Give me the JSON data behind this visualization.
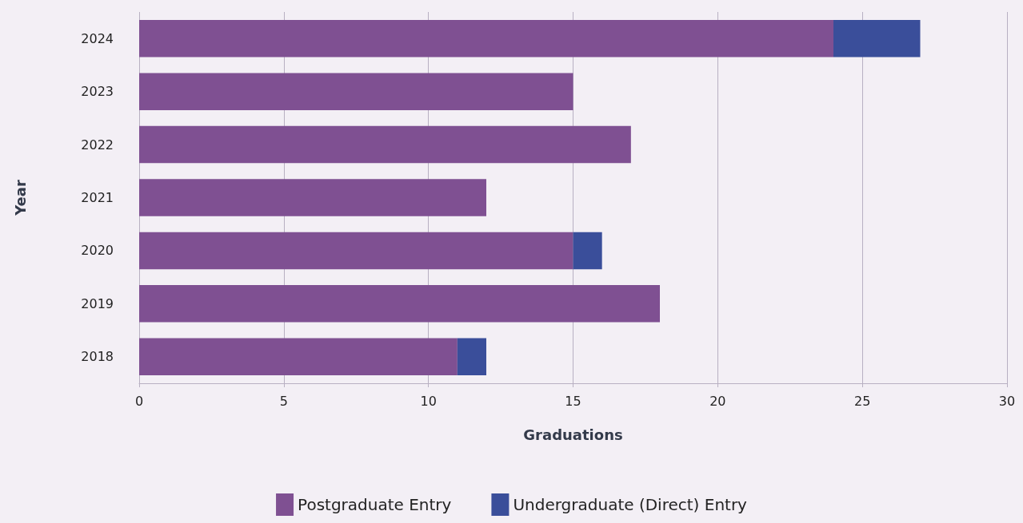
{
  "chart_data": {
    "type": "bar",
    "orientation": "horizontal",
    "stacked": true,
    "xlabel": "Graduations",
    "ylabel": "Year",
    "categories": [
      "2024",
      "2023",
      "2022",
      "2021",
      "2020",
      "2019",
      "2018"
    ],
    "series": [
      {
        "name": "Postgraduate Entry",
        "color": "#7f5092",
        "values": [
          24,
          15,
          17,
          12,
          15,
          18,
          11
        ]
      },
      {
        "name": "Undergraduate (Direct) Entry",
        "color": "#3a4e9a",
        "values": [
          3,
          null,
          null,
          null,
          1,
          null,
          1
        ]
      }
    ],
    "xlim": [
      0,
      30
    ],
    "xticks": [
      0,
      5,
      10,
      15,
      20,
      25,
      30
    ],
    "grid": "x",
    "legend": "bottom"
  }
}
